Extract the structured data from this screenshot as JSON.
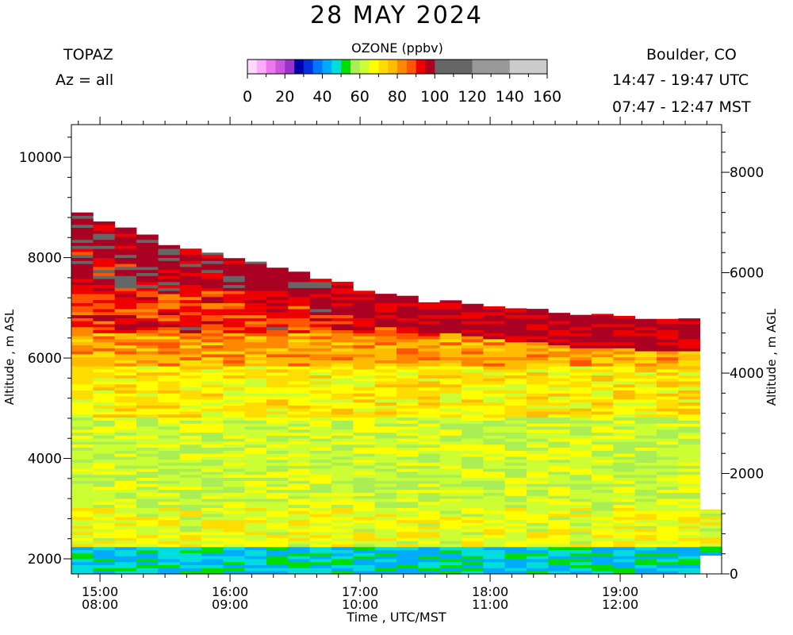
{
  "header": {
    "title": "28 MAY 2024",
    "instrument": "TOPAZ",
    "azimuth": "Az = all",
    "location": "Boulder, CO",
    "utc_range": "14:47 - 19:47 UTC",
    "mst_range": "07:47 - 12:47 MST"
  },
  "colorbar": {
    "title": "OZONE (ppbv)",
    "ticks": [
      0,
      20,
      40,
      60,
      80,
      100,
      120,
      140,
      160
    ],
    "range": [
      0,
      160
    ],
    "segments": [
      {
        "lo": 0,
        "hi": 5,
        "color": "#ffd8ff"
      },
      {
        "lo": 5,
        "hi": 10,
        "color": "#ffaaff"
      },
      {
        "lo": 10,
        "hi": 15,
        "color": "#ee77ee"
      },
      {
        "lo": 15,
        "hi": 20,
        "color": "#cc55dd"
      },
      {
        "lo": 20,
        "hi": 25,
        "color": "#9933cc"
      },
      {
        "lo": 25,
        "hi": 30,
        "color": "#0000aa"
      },
      {
        "lo": 30,
        "hi": 35,
        "color": "#0033dd"
      },
      {
        "lo": 35,
        "hi": 40,
        "color": "#0077ff"
      },
      {
        "lo": 40,
        "hi": 45,
        "color": "#00aaff"
      },
      {
        "lo": 45,
        "hi": 50,
        "color": "#00dddd"
      },
      {
        "lo": 50,
        "hi": 55,
        "color": "#00dd00"
      },
      {
        "lo": 55,
        "hi": 60,
        "color": "#aaee55"
      },
      {
        "lo": 60,
        "hi": 65,
        "color": "#ccff33"
      },
      {
        "lo": 65,
        "hi": 70,
        "color": "#ffff00"
      },
      {
        "lo": 70,
        "hi": 75,
        "color": "#ffdd00"
      },
      {
        "lo": 75,
        "hi": 80,
        "color": "#ffbb00"
      },
      {
        "lo": 80,
        "hi": 85,
        "color": "#ff8800"
      },
      {
        "lo": 85,
        "hi": 90,
        "color": "#ff5500"
      },
      {
        "lo": 90,
        "hi": 95,
        "color": "#ee0000"
      },
      {
        "lo": 95,
        "hi": 100,
        "color": "#aa0022"
      },
      {
        "lo": 100,
        "hi": 120,
        "color": "#666666"
      },
      {
        "lo": 120,
        "hi": 140,
        "color": "#999999"
      },
      {
        "lo": 140,
        "hi": 160,
        "color": "#cccccc"
      }
    ]
  },
  "chart_data": {
    "type": "heatmap",
    "title": "28 MAY 2024",
    "xlabel": "Time , UTC/MST",
    "ylabel_left": "Altitude , m ASL",
    "ylabel_right": "Altitude , m AGL",
    "x_range_utc_hours": [
      14.78,
      19.78
    ],
    "y_range_asl_m": [
      1700,
      10650
    ],
    "y_ticks_asl": [
      2000,
      4000,
      6000,
      8000,
      10000
    ],
    "y_ticks_agl": [
      0,
      2000,
      4000,
      6000,
      8000
    ],
    "x_ticks": [
      {
        "hour": 15,
        "utc": "15:00",
        "mst": "08:00"
      },
      {
        "hour": 16,
        "utc": "16:00",
        "mst": "09:00"
      },
      {
        "hour": 17,
        "utc": "17:00",
        "mst": "10:00"
      },
      {
        "hour": 18,
        "utc": "18:00",
        "mst": "11:00"
      },
      {
        "hour": 19,
        "utc": "19:00",
        "mst": "12:00"
      }
    ],
    "profile_interval_minutes": 10,
    "profile_start_utc_hours": 14.78,
    "bottom_altitude_asl_m": 1700,
    "profile_top_altitude_asl_m": [
      8900,
      8720,
      8600,
      8460,
      8250,
      8180,
      8100,
      7990,
      7920,
      7800,
      7720,
      7580,
      7520,
      7340,
      7280,
      7240,
      7110,
      7150,
      7080,
      7030,
      6990,
      6980,
      6900,
      6860,
      6880,
      6840,
      6780,
      6780,
      6790,
      2980
    ],
    "profile_bottom_altitude_asl_m": [
      1700,
      1700,
      1700,
      1700,
      1700,
      1700,
      1700,
      1700,
      1700,
      1700,
      1700,
      1700,
      1700,
      1700,
      1700,
      1700,
      1700,
      1700,
      1700,
      1700,
      1700,
      1700,
      1700,
      1700,
      1700,
      1700,
      1700,
      1700,
      1700,
      2070
    ],
    "ozone_layers_ppbv": [
      {
        "alt_min": 1700,
        "alt_max": 2200,
        "ppbv": 47
      },
      {
        "alt_min": 2200,
        "alt_max": 3000,
        "ppbv": 66
      },
      {
        "alt_min": 3000,
        "alt_max": 4800,
        "ppbv": 62
      },
      {
        "alt_min": 4800,
        "alt_max": 5800,
        "ppbv": 70
      },
      {
        "alt_min": 5800,
        "alt_max": 6500,
        "ppbv": 80
      },
      {
        "alt_min": 6500,
        "alt_max": 7400,
        "ppbv": 90
      },
      {
        "alt_min": 7400,
        "alt_max": 9000,
        "ppbv": 96
      }
    ]
  }
}
